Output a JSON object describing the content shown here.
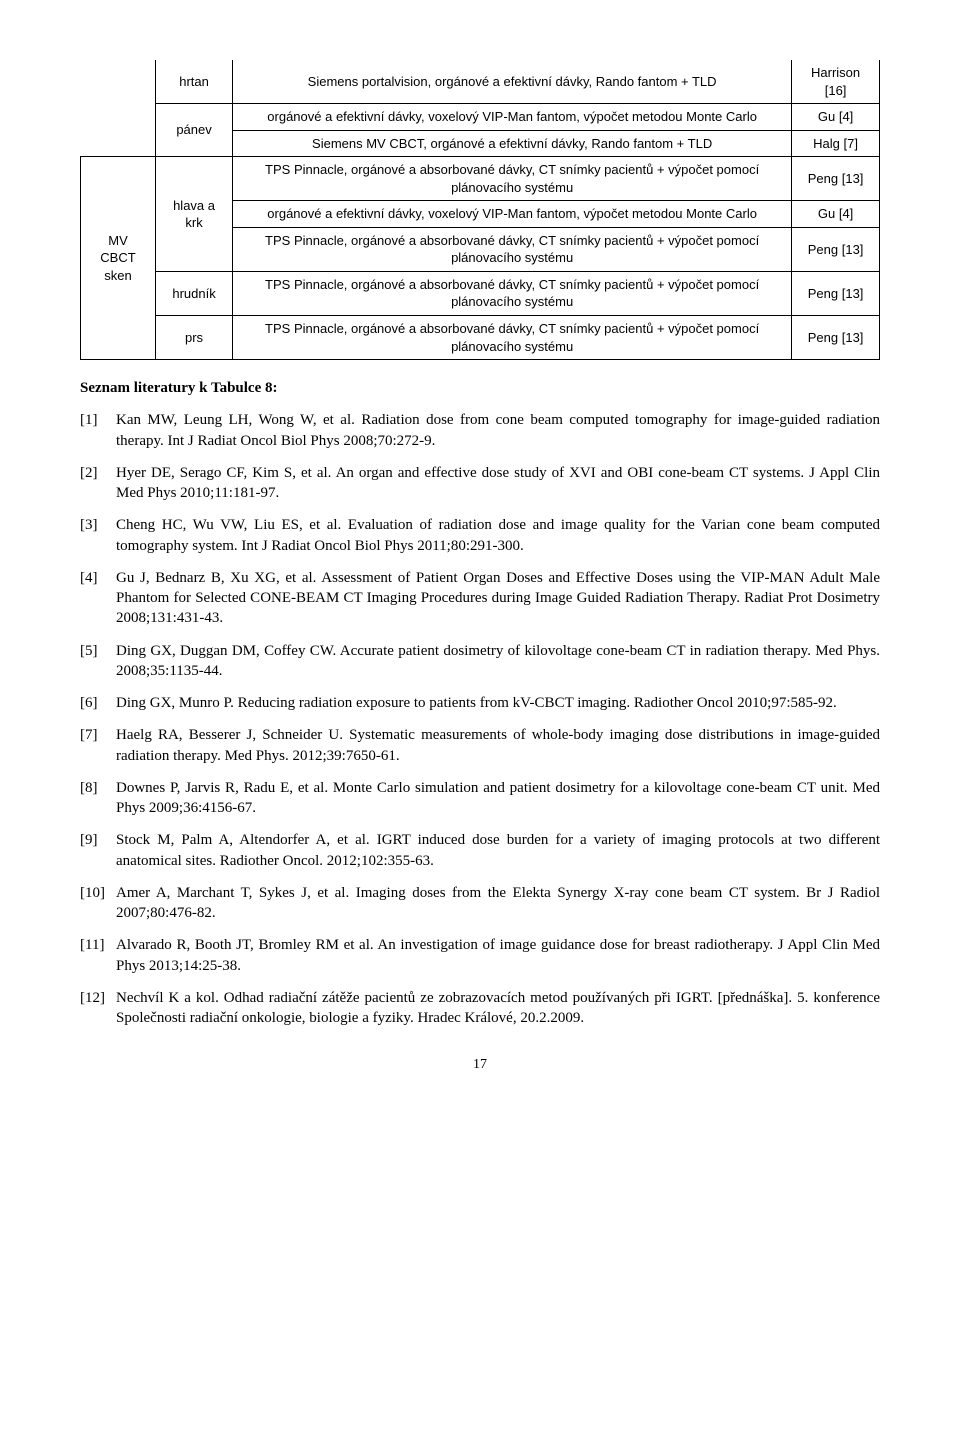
{
  "table": {
    "col1_label": "MV CBCT sken",
    "rows": [
      {
        "site": "hrtan",
        "method": "Siemens portalvision, orgánové a efektivní dávky, Rando fantom + TLD",
        "ref": "Harrison [16]"
      },
      {
        "site": "pánev",
        "method": "orgánové a efektivní dávky, voxelový VIP-Man fantom, výpočet metodou Monte Carlo",
        "ref": "Gu [4]"
      },
      {
        "site": "",
        "method": "Siemens MV CBCT, orgánové a efektivní dávky, Rando fantom + TLD",
        "ref": "Halg [7]"
      },
      {
        "site": "hlava a krk",
        "method": "TPS Pinnacle, orgánové a absorbované dávky, CT snímky pacientů + výpočet pomocí plánovacího systému",
        "ref": "Peng [13]"
      },
      {
        "site": "",
        "method": "orgánové a efektivní dávky, voxelový VIP-Man fantom, výpočet metodou Monte Carlo",
        "ref": "Gu [4]"
      },
      {
        "site": "",
        "method": "TPS Pinnacle, orgánové a absorbované dávky, CT snímky pacientů + výpočet pomocí plánovacího systému",
        "ref": "Peng [13]"
      },
      {
        "site": "hrudník",
        "method": "TPS Pinnacle, orgánové a absorbované dávky, CT snímky pacientů + výpočet pomocí plánovacího systému",
        "ref": "Peng [13]"
      },
      {
        "site": "prs",
        "method": "TPS Pinnacle, orgánové a absorbované dávky, CT snímky pacientů + výpočet pomocí plánovacího systému",
        "ref": "Peng [13]"
      }
    ]
  },
  "refs_heading": "Seznam literatury k Tabulce 8:",
  "references": [
    {
      "num": "[1]",
      "text": "Kan MW, Leung LH, Wong W, et al. Radiation dose from cone beam computed tomography for image-guided radiation therapy. Int J Radiat Oncol Biol Phys 2008;70:272-9."
    },
    {
      "num": "[2]",
      "text": "Hyer DE, Serago CF, Kim S, et al. An organ and effective dose study of XVI and OBI cone-beam CT systems. J Appl Clin Med Phys 2010;11:181-97."
    },
    {
      "num": "[3]",
      "text": "Cheng HC, Wu VW, Liu ES, et al. Evaluation of radiation dose and image quality for the Varian cone beam computed tomography system. Int J Radiat Oncol Biol Phys 2011;80:291-300."
    },
    {
      "num": "[4]",
      "text": "Gu J, Bednarz B, Xu XG, et al. Assessment of Patient Organ Doses and Effective Doses using the VIP-MAN Adult Male Phantom for Selected CONE-BEAM CT Imaging Procedures during Image Guided Radiation Therapy. Radiat Prot Dosimetry 2008;131:431-43."
    },
    {
      "num": "[5]",
      "text": "Ding GX, Duggan DM, Coffey CW. Accurate patient dosimetry of kilovoltage cone-beam CT in radiation therapy. Med Phys. 2008;35:1135-44."
    },
    {
      "num": "[6]",
      "text": "Ding GX, Munro P. Reducing radiation exposure to patients from kV-CBCT imaging. Radiother Oncol 2010;97:585-92."
    },
    {
      "num": "[7]",
      "text": "Haelg RA, Besserer J, Schneider U. Systematic measurements of whole-body imaging dose distributions in image-guided radiation therapy. Med Phys. 2012;39:7650-61."
    },
    {
      "num": "[8]",
      "text": "Downes P, Jarvis R, Radu E, et al. Monte Carlo simulation and patient dosimetry for a kilovoltage cone-beam CT unit. Med Phys 2009;36:4156-67."
    },
    {
      "num": "[9]",
      "text": "Stock M, Palm A, Altendorfer A, et al. IGRT induced dose burden for a variety of imaging protocols at two different anatomical sites. Radiother Oncol. 2012;102:355-63."
    },
    {
      "num": "[10]",
      "text": "Amer A, Marchant T, Sykes J, et al. Imaging doses from the Elekta Synergy X-ray cone beam CT system. Br J Radiol 2007;80:476-82."
    },
    {
      "num": "[11]",
      "text": "Alvarado R, Booth JT, Bromley RM et al. An investigation of image guidance dose for breast radiotherapy. J Appl Clin Med Phys 2013;14:25-38."
    },
    {
      "num": "[12]",
      "text": "Nechvíl K a kol. Odhad radiační zátěže pacientů ze zobrazovacích metod používaných při IGRT. [přednáška]. 5. konference Společnosti radiační onkologie, biologie a fyziky. Hradec Králové, 20.2.2009."
    }
  ],
  "page_number": "17"
}
